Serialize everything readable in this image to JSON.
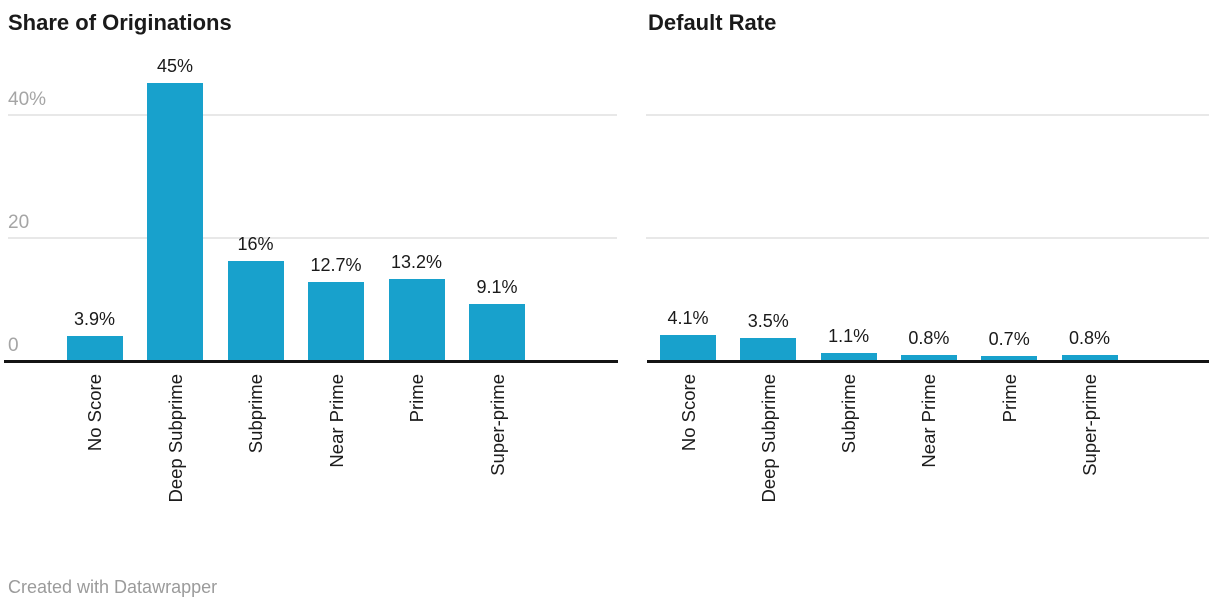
{
  "page": {
    "attribution": "Created with Datawrapper"
  },
  "colors": {
    "bar": "#18a1cc",
    "grid_line": "#e8e8e8",
    "baseline": "#141414",
    "tick_label": "#a5a5a5",
    "value_label": "#1a1a1a",
    "category_label": "#1c1c1c",
    "title": "#1a1a1a",
    "attribution": "#9b9b9b"
  },
  "chart_data": [
    {
      "type": "bar",
      "title": "Share of Originations",
      "categories": [
        "No Score",
        "Deep Subprime",
        "Subprime",
        "Near Prime",
        "Prime",
        "Super-prime"
      ],
      "values": [
        3.9,
        45,
        16,
        12.7,
        13.2,
        9.1
      ],
      "value_labels": [
        "3.9%",
        "45%",
        "16%",
        "12.7%",
        "13.2%",
        "9.1%"
      ],
      "yticks": [
        {
          "value": 40,
          "label": "40%"
        },
        {
          "value": 20,
          "label": "20"
        },
        {
          "value": 0,
          "label": "0"
        }
      ],
      "ylim": [
        0,
        45
      ],
      "grid": true,
      "show_tick_labels": true,
      "legend": "none"
    },
    {
      "type": "bar",
      "title": "Default Rate",
      "categories": [
        "No Score",
        "Deep Subprime",
        "Subprime",
        "Near Prime",
        "Prime",
        "Super-prime"
      ],
      "values": [
        4.1,
        3.5,
        1.1,
        0.8,
        0.7,
        0.8
      ],
      "value_labels": [
        "4.1%",
        "3.5%",
        "1.1%",
        "0.8%",
        "0.7%",
        "0.8%"
      ],
      "yticks": [
        {
          "value": 40,
          "label": ""
        },
        {
          "value": 20,
          "label": ""
        },
        {
          "value": 0,
          "label": ""
        }
      ],
      "ylim": [
        0,
        45
      ],
      "grid": true,
      "show_tick_labels": false,
      "legend": "none"
    }
  ]
}
